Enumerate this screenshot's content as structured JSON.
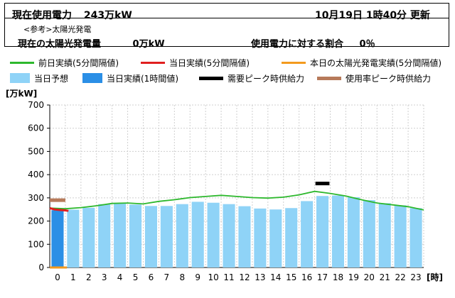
{
  "header": {
    "current_usage_label": "現在使用電力",
    "current_usage_value": "243万kW",
    "update_datetime": "10月19日 1時40分 更新",
    "reference_note": "<参考>太陽光発電",
    "solar_label": "現在の太陽光発電量",
    "solar_value": "0万kW",
    "ratio_label": "使用電力に対する割合",
    "ratio_value": "0％"
  },
  "legend": [
    {
      "label": "前日実績(5分間隔値)",
      "color": "#2db82d",
      "kind": "line"
    },
    {
      "label": "当日実績(5分間隔値)",
      "color": "#e01f1f",
      "kind": "line"
    },
    {
      "label": "本日の太陽光発電実績(5分間隔値)",
      "color": "#f39a1e",
      "kind": "line"
    },
    {
      "label": "当日予想",
      "color": "#8fd3f7",
      "kind": "box"
    },
    {
      "label": "当日実績(1時間値)",
      "color": "#2b8fe6",
      "kind": "box"
    },
    {
      "label": "需要ピーク時供給力",
      "color": "#000000",
      "kind": "line"
    },
    {
      "label": "使用率ピーク時供給力",
      "color": "#b77a5a",
      "kind": "line"
    }
  ],
  "chart_data": {
    "type": "bar",
    "ylabel": "[万kW]",
    "xlabel": "[時]",
    "ylim": [
      0,
      700
    ],
    "yticks": [
      0,
      100,
      200,
      300,
      400,
      500,
      600,
      700
    ],
    "categories": [
      "0",
      "1",
      "2",
      "3",
      "4",
      "5",
      "6",
      "7",
      "8",
      "9",
      "10",
      "11",
      "12",
      "13",
      "14",
      "15",
      "16",
      "17",
      "18",
      "19",
      "20",
      "21",
      "22",
      "23"
    ],
    "forecast": [
      243,
      249,
      257,
      273,
      275,
      271,
      265,
      265,
      273,
      283,
      279,
      273,
      264,
      254,
      250,
      256,
      286,
      308,
      310,
      303,
      290,
      277,
      268,
      256
    ],
    "actual_hourly": [
      247
    ],
    "previous_day": [
      [
        0,
        256
      ],
      [
        1,
        253
      ],
      [
        2,
        258
      ],
      [
        3,
        266
      ],
      [
        4,
        276
      ],
      [
        5,
        278
      ],
      [
        6,
        274
      ],
      [
        7,
        285
      ],
      [
        8,
        292
      ],
      [
        9,
        301
      ],
      [
        10,
        306
      ],
      [
        11,
        311
      ],
      [
        12,
        306
      ],
      [
        13,
        301
      ],
      [
        14,
        299
      ],
      [
        15,
        303
      ],
      [
        16,
        313
      ],
      [
        17,
        328
      ],
      [
        18,
        319
      ],
      [
        19,
        308
      ],
      [
        20,
        292
      ],
      [
        21,
        278
      ],
      [
        22,
        270
      ],
      [
        23,
        262
      ],
      [
        24,
        248
      ]
    ],
    "today_actual": [
      [
        0,
        256
      ],
      [
        0.3,
        250
      ],
      [
        0.6,
        248
      ],
      [
        1,
        246
      ],
      [
        1.2,
        244
      ]
    ],
    "solar_today": [
      [
        0,
        0
      ],
      [
        1.1,
        0
      ]
    ],
    "demand_peak_supply": {
      "hour": 17,
      "value": 362
    },
    "usage_rate_peak_supply": {
      "hour": 0,
      "value": 290
    },
    "grid": true
  }
}
